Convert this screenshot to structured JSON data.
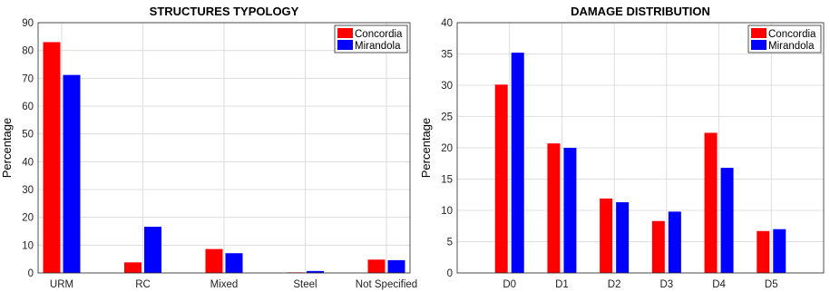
{
  "chart_data": [
    {
      "type": "bar",
      "title": "STRUCTURES TYPOLOGY",
      "xlabel": "",
      "ylabel": "Percentage",
      "categories": [
        "URM",
        "RC",
        "Mixed",
        "Steel",
        "Not Specified"
      ],
      "ylim": [
        0,
        90
      ],
      "yticks": [
        0,
        10,
        20,
        30,
        40,
        50,
        60,
        70,
        80,
        90
      ],
      "series": [
        {
          "name": "Concordia",
          "color": "#ff0000",
          "values": [
            83,
            3.8,
            8.6,
            0.2,
            4.8
          ]
        },
        {
          "name": "Mirandola",
          "color": "#0000ff",
          "values": [
            71.2,
            16.6,
            7.1,
            0.7,
            4.6
          ]
        }
      ],
      "grid": true,
      "legend": "top-right"
    },
    {
      "type": "bar",
      "title": "DAMAGE DISTRIBUTION",
      "xlabel": "",
      "ylabel": "Percentage",
      "categories": [
        "D0",
        "D1",
        "D2",
        "D3",
        "D4",
        "D5"
      ],
      "ylim": [
        0,
        40
      ],
      "yticks": [
        0,
        5,
        10,
        15,
        20,
        25,
        30,
        35,
        40
      ],
      "series": [
        {
          "name": "Concordia",
          "color": "#ff0000",
          "values": [
            30.1,
            20.7,
            11.9,
            8.3,
            22.4,
            6.7
          ]
        },
        {
          "name": "Mirandola",
          "color": "#0000ff",
          "values": [
            35.2,
            20.0,
            11.3,
            9.8,
            16.8,
            7.0
          ]
        }
      ],
      "grid": true,
      "legend": "top-right"
    }
  ]
}
